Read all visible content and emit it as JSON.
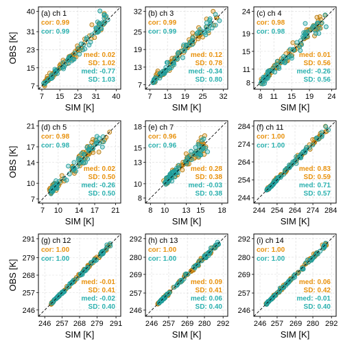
{
  "colors": {
    "series_a": "#e8910c",
    "series_b": "#2ab0ae",
    "point_edge_a": "#b07a12",
    "point_edge_b": "#1f9997"
  },
  "chart_data": {
    "type": "scatter",
    "xlabel": "SIM [K]",
    "ylabel": "OBS [K]",
    "grid": true,
    "panels": [
      {
        "title": "(a)  ch 1",
        "ticks": [
          7,
          15,
          23,
          31,
          40
        ],
        "lim": [
          5.5,
          42
        ],
        "stats": {
          "cor_a": "cor:  0.99",
          "cor_b": "cor:  0.99",
          "med_a": "med:  0.02",
          "sd_a": "SD:  1.02",
          "med_b": "med:  -0.77",
          "sd_b": "SD:  1.03"
        },
        "cloud": [
          [
            8,
            8
          ],
          [
            15,
            15
          ],
          [
            23,
            23
          ],
          [
            31,
            32
          ],
          [
            35,
            38
          ]
        ],
        "spread": 0.9
      },
      {
        "title": "(b)  ch 3",
        "ticks": [
          7,
          13,
          19,
          25,
          32
        ],
        "lim": [
          5.5,
          33.5
        ],
        "stats": {
          "cor_a": "cor:  0.99",
          "cor_b": "cor:  0.99",
          "med_a": "med:  0.12",
          "sd_a": "SD:  0.78",
          "med_b": "med:  -0.34",
          "sd_b": "SD:  0.80"
        },
        "cloud": [
          [
            8,
            8
          ],
          [
            13,
            13
          ],
          [
            19,
            19.5
          ],
          [
            24,
            24.5
          ],
          [
            30,
            30.5
          ]
        ],
        "spread": 0.7
      },
      {
        "title": "(c)  ch 4",
        "ticks": [
          8,
          11,
          15,
          19,
          24
        ],
        "lim": [
          6.5,
          25
        ],
        "stats": {
          "cor_a": "cor:  0.98",
          "cor_b": "cor:  0.98",
          "med_a": "med:  0.01",
          "sd_a": "SD:  0.56",
          "med_b": "med:  -0.26",
          "sd_b": "SD:  0.56"
        },
        "cloud": [
          [
            8,
            8
          ],
          [
            11,
            11
          ],
          [
            15,
            15
          ],
          [
            19,
            19.5
          ],
          [
            22,
            22
          ]
        ],
        "spread": 0.5
      },
      {
        "title": "(d)  ch 5",
        "ticks": [
          7,
          10,
          14,
          17,
          21
        ],
        "lim": [
          6.2,
          22
        ],
        "stats": {
          "cor_a": "cor:  0.98",
          "cor_b": "cor:  0.98",
          "med_a": "med:  0.02",
          "sd_a": "SD:  0.50",
          "med_b": "med:  -0.26",
          "sd_b": "SD:  0.50"
        },
        "cloud": [
          [
            8.5,
            8.5
          ],
          [
            10,
            10
          ],
          [
            14,
            14
          ],
          [
            16,
            16.5
          ],
          [
            19,
            19
          ]
        ],
        "spread": 0.45
      },
      {
        "title": "(e)  ch 7",
        "ticks": [
          8,
          10,
          13,
          15,
          18
        ],
        "lim": [
          7.3,
          18.8
        ],
        "stats": {
          "cor_a": "cor:  0.96",
          "cor_b": "cor:  0.96",
          "med_a": "med:  0.28",
          "sd_a": "SD:  0.38",
          "med_b": "med:  -0.03",
          "sd_b": "SD:  0.38"
        },
        "cloud": [
          [
            10,
            10
          ],
          [
            11,
            11.2
          ],
          [
            13,
            13.2
          ],
          [
            14.5,
            14.6
          ],
          [
            15.5,
            15.5
          ]
        ],
        "spread": 0.35
      },
      {
        "title": "(f)  ch 11",
        "ticks": [
          244,
          254,
          264,
          274,
          284
        ],
        "lim": [
          241,
          287
        ],
        "stats": {
          "cor_a": "cor:  1.00",
          "cor_b": "cor:  1.00",
          "med_a": "med:  0.83",
          "sd_a": "SD:  0.59",
          "med_b": "med:  0.71",
          "sd_b": "SD:  0.57"
        },
        "cloud": [
          [
            248,
            248
          ],
          [
            256,
            256.5
          ],
          [
            264,
            264.5
          ],
          [
            272,
            272.6
          ],
          [
            282,
            282.5
          ]
        ],
        "spread": 0.5
      },
      {
        "title": "(g)  ch 12",
        "ticks": [
          246,
          257,
          268,
          279,
          291
        ],
        "lim": [
          242,
          294
        ],
        "stats": {
          "cor_a": "cor:  1.00",
          "cor_b": "cor:  1.00",
          "med_a": "med:  -0.01",
          "sd_a": "SD:  0.41",
          "med_b": "med:  -0.02",
          "sd_b": "SD:  0.40"
        },
        "cloud": [
          [
            250,
            250
          ],
          [
            257,
            257
          ],
          [
            268,
            268
          ],
          [
            279,
            279
          ],
          [
            288,
            288
          ]
        ],
        "spread": 0.4
      },
      {
        "title": "(h)  ch 13",
        "ticks": [
          246,
          257,
          269,
          280,
          292
        ],
        "lim": [
          242,
          295
        ],
        "stats": {
          "cor_a": "cor:  1.00",
          "cor_b": "cor:  1.00",
          "med_a": "med:  0.09",
          "sd_a": "SD:  0.41",
          "med_b": "med:  0.06",
          "sd_b": "SD:  0.40"
        },
        "cloud": [
          [
            250,
            250
          ],
          [
            257,
            257
          ],
          [
            269,
            269
          ],
          [
            280,
            280
          ],
          [
            289,
            289
          ]
        ],
        "spread": 0.4
      },
      {
        "title": "(i)  ch 14",
        "ticks": [
          246,
          257,
          269,
          280,
          292
        ],
        "lim": [
          242,
          295
        ],
        "stats": {
          "cor_a": "cor:  1.00",
          "cor_b": "cor:  1.00",
          "med_a": "med:  0.06",
          "sd_a": "SD:  0.42",
          "med_b": "med:  -0.01",
          "sd_b": "SD:  0.40"
        },
        "cloud": [
          [
            250,
            250
          ],
          [
            257,
            257
          ],
          [
            269,
            269
          ],
          [
            280,
            280
          ],
          [
            289,
            289
          ]
        ],
        "spread": 0.4
      }
    ]
  }
}
